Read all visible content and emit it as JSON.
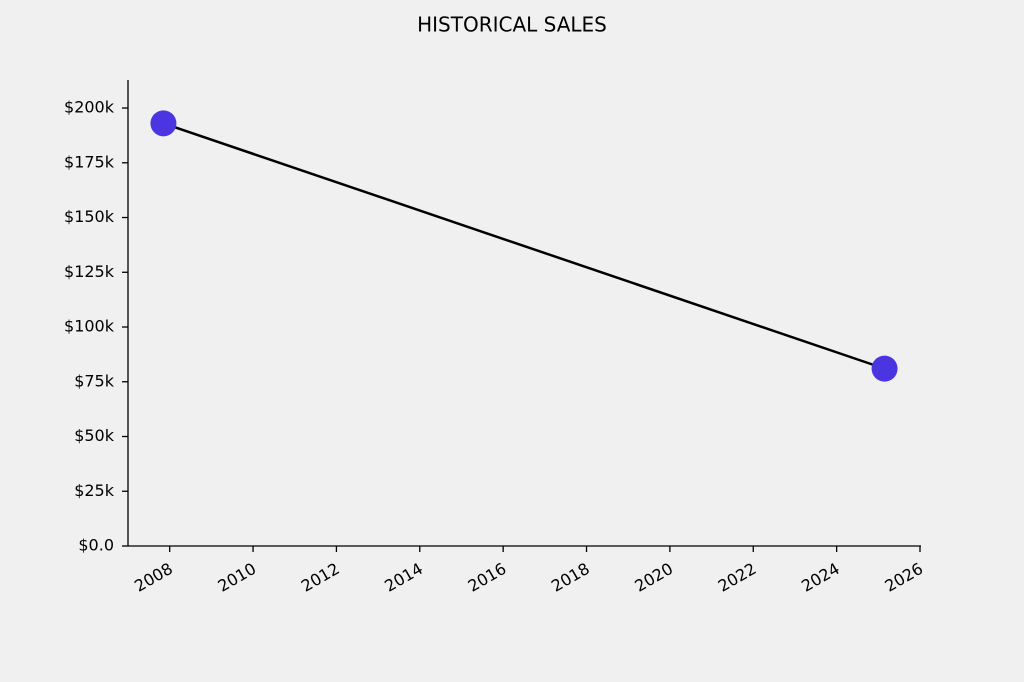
{
  "chart_data": {
    "type": "line",
    "title": "HISTORICAL SALES",
    "x": [
      2007.85,
      2025.15
    ],
    "values": [
      193000,
      81000
    ],
    "color": "#4b35e0",
    "line_color": "#000000",
    "xlim": [
      2007,
      2026
    ],
    "xticks": [
      2008,
      2010,
      2012,
      2014,
      2016,
      2018,
      2020,
      2022,
      2024,
      2026
    ],
    "ylim": [
      0,
      212800
    ],
    "yticks": [
      {
        "value": 0,
        "label": "$0.0"
      },
      {
        "value": 25000,
        "label": "$25k"
      },
      {
        "value": 50000,
        "label": "$50k"
      },
      {
        "value": 75000,
        "label": "$75k"
      },
      {
        "value": 100000,
        "label": "$100k"
      },
      {
        "value": 125000,
        "label": "$125k"
      },
      {
        "value": 150000,
        "label": "$150k"
      },
      {
        "value": 175000,
        "label": "$175k"
      },
      {
        "value": 200000,
        "label": "$200k"
      }
    ],
    "grid": false
  }
}
